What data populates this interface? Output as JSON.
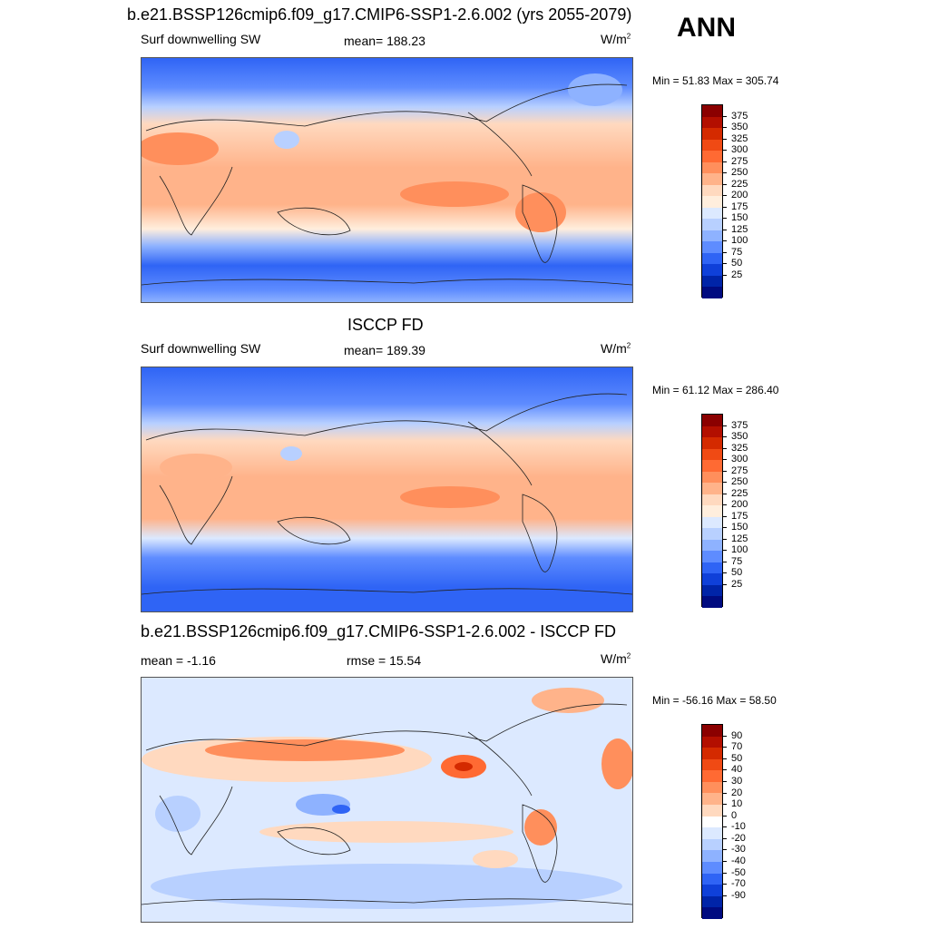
{
  "header": {
    "title": "b.e21.BSSP126cmip6.f09_g17.CMIP6-SSP1-2.6.002 (yrs 2055-2079)",
    "season": "ANN"
  },
  "panels": [
    {
      "title": "",
      "left_label": "Surf downwelling SW",
      "center_label": "mean= 188.23",
      "units": "W/m",
      "units_sup": "2",
      "range": "Min =  51.83 Max = 305.74",
      "colorbar": {
        "ticks": [
          "375",
          "350",
          "325",
          "300",
          "275",
          "250",
          "225",
          "200",
          "175",
          "150",
          "125",
          "100",
          "75",
          "50",
          "25"
        ],
        "colors": [
          "#8b0000",
          "#b30f00",
          "#d42a00",
          "#f04a14",
          "#ff6a33",
          "#ff8f5c",
          "#ffb38a",
          "#ffd9bf",
          "#ffeedd",
          "#dce9ff",
          "#b8d0ff",
          "#8eb2ff",
          "#5e8cff",
          "#2f64f5",
          "#0f40d9",
          "#0024a8",
          "#000b80"
        ]
      }
    },
    {
      "title": "ISCCP FD",
      "left_label": "Surf downwelling SW",
      "center_label": "mean= 189.39",
      "units": "W/m",
      "units_sup": "2",
      "range": "Min =  61.12 Max = 286.40",
      "colorbar": {
        "ticks": [
          "375",
          "350",
          "325",
          "300",
          "275",
          "250",
          "225",
          "200",
          "175",
          "150",
          "125",
          "100",
          "75",
          "50",
          "25"
        ],
        "colors": [
          "#8b0000",
          "#b30f00",
          "#d42a00",
          "#f04a14",
          "#ff6a33",
          "#ff8f5c",
          "#ffb38a",
          "#ffd9bf",
          "#ffeedd",
          "#dce9ff",
          "#b8d0ff",
          "#8eb2ff",
          "#5e8cff",
          "#2f64f5",
          "#0f40d9",
          "#0024a8",
          "#000b80"
        ]
      }
    },
    {
      "title": "b.e21.BSSP126cmip6.f09_g17.CMIP6-SSP1-2.6.002 - ISCCP FD",
      "left_label": "mean =  -1.16",
      "center_label": "rmse =  15.54",
      "units": "W/m",
      "units_sup": "2",
      "range": "Min = -56.16 Max =  58.50",
      "colorbar": {
        "ticks": [
          "90",
          "70",
          "50",
          "40",
          "30",
          "20",
          "10",
          "0",
          "-10",
          "-20",
          "-30",
          "-40",
          "-50",
          "-70",
          "-90"
        ],
        "colors": [
          "#8b0000",
          "#b30f00",
          "#d42a00",
          "#f04a14",
          "#ff6a33",
          "#ff8f5c",
          "#ffb38a",
          "#ffd9bf",
          "#ffffff",
          "#dce9ff",
          "#b8d0ff",
          "#8eb2ff",
          "#5e8cff",
          "#2f64f5",
          "#0f40d9",
          "#0024a8",
          "#000b80"
        ]
      }
    }
  ]
}
